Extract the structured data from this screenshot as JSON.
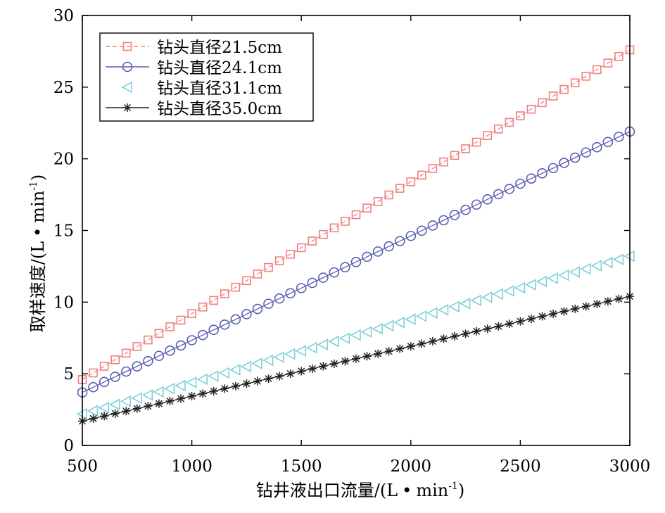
{
  "chart_data": {
    "type": "line",
    "xlabel": "钻井液出口流量/(L·min⁻¹)",
    "ylabel": "取样速度/(L·min⁻¹)",
    "xlabel_parts": {
      "main": "钻井液出口流量/(L",
      "dot": "•",
      "unit": "min",
      "sup": "-1",
      "close": ")"
    },
    "ylabel_parts": {
      "main": "取样速度/(L",
      "dot": "•",
      "unit": "min",
      "sup": "-1",
      "close": ")"
    },
    "xlim": [
      500,
      3000
    ],
    "ylim": [
      0,
      30
    ],
    "xticks": [
      500,
      1000,
      1500,
      2000,
      2500,
      3000
    ],
    "yticks": [
      0,
      5,
      10,
      15,
      20,
      25,
      30
    ],
    "x_start": 500,
    "x_end": 3000,
    "x_step": 50,
    "legend_position": "top-left",
    "series": [
      {
        "name": "钻头直径21.5cm",
        "marker": "square",
        "linestyle": "dashed",
        "color": "#f08080",
        "y_start": 4.6,
        "y_end": 27.6
      },
      {
        "name": "钻头直径24.1cm",
        "marker": "circle",
        "linestyle": "solid",
        "color": "#5a5fb0",
        "y_start": 3.7,
        "y_end": 21.9
      },
      {
        "name": "钻头直径31.1cm",
        "marker": "triangle-left",
        "linestyle": "none",
        "color": "#7fd0d8",
        "y_start": 2.2,
        "y_end": 13.2
      },
      {
        "name": "钻头直径35.0cm",
        "marker": "star",
        "linestyle": "solid",
        "color": "#222222",
        "y_start": 1.7,
        "y_end": 10.4
      }
    ]
  }
}
